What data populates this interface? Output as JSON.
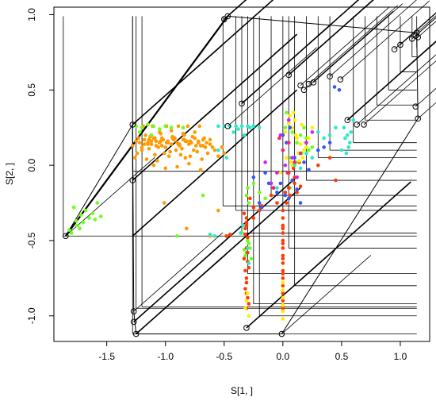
{
  "chart_data": {
    "type": "scatter",
    "xlabel": "S[1, ]",
    "ylabel": "S[2, ]",
    "xlim": [
      -1.95,
      1.25
    ],
    "ylim": [
      -1.17,
      1.05
    ],
    "xticks": [
      -1.5,
      -1.0,
      -0.5,
      0.0,
      0.5,
      1.0
    ],
    "xtick_labels": [
      "-1.5",
      "-1.0",
      "-0.5",
      "0.0",
      "0.5",
      "1.0"
    ],
    "yticks": [
      -1.0,
      -0.5,
      0.0,
      0.5,
      1.0
    ],
    "ytick_labels": [
      "-1.0",
      "-0.5",
      "0.0",
      "0.5",
      "1.0"
    ],
    "grid": false,
    "legend": "none",
    "hull_vertices": [
      [
        -1.85,
        -0.47
      ],
      [
        -1.28,
        0.27
      ],
      [
        -1.28,
        -0.1
      ],
      [
        -1.27,
        -0.97
      ],
      [
        -1.27,
        -1.04
      ],
      [
        -1.25,
        -1.12
      ],
      [
        -0.5,
        0.97
      ],
      [
        -0.47,
        0.99
      ],
      [
        -0.47,
        0.26
      ],
      [
        -0.35,
        0.41
      ],
      [
        -0.31,
        -1.08
      ],
      [
        -0.01,
        -1.12
      ],
      [
        0.05,
        0.6
      ],
      [
        0.15,
        0.53
      ],
      [
        0.18,
        0.5
      ],
      [
        0.22,
        0.54
      ],
      [
        0.26,
        0.55
      ],
      [
        0.4,
        0.59
      ],
      [
        0.49,
        0.57
      ],
      [
        0.55,
        0.3
      ],
      [
        0.63,
        0.27
      ],
      [
        0.69,
        0.27
      ],
      [
        0.95,
        0.77
      ],
      [
        1.0,
        0.8
      ],
      [
        1.1,
        0.84
      ],
      [
        1.13,
        0.86
      ],
      [
        1.14,
        0.88
      ],
      [
        1.15,
        0.85
      ],
      [
        1.13,
        0.39
      ],
      [
        1.15,
        0.31
      ]
    ],
    "rect_corners": [
      [
        -1.87,
        -0.47
      ],
      [
        -1.28,
        -0.04
      ],
      [
        -1.25,
        -0.95
      ],
      [
        -1.28,
        -1.12
      ],
      [
        -1.2,
        -0.94
      ],
      [
        -0.51,
        -0.27
      ],
      [
        -0.4,
        -0.3
      ],
      [
        -0.35,
        -0.45
      ],
      [
        -0.3,
        -0.72
      ],
      [
        -0.25,
        -0.92
      ],
      [
        -0.2,
        -1.0
      ],
      [
        -0.1,
        -0.2
      ],
      [
        0.0,
        -0.3
      ],
      [
        0.05,
        -0.55
      ],
      [
        0.1,
        -0.8
      ],
      [
        0.2,
        -0.1
      ],
      [
        0.3,
        0.05
      ],
      [
        0.4,
        0.1
      ],
      [
        0.6,
        0.15
      ],
      [
        0.7,
        0.3
      ],
      [
        0.8,
        0.4
      ],
      [
        0.9,
        0.5
      ],
      [
        1.0,
        0.62
      ],
      [
        1.1,
        0.72
      ],
      [
        1.14,
        0.78
      ]
    ],
    "series": [
      {
        "color": "#ff9a00",
        "x": [
          -1.25,
          -1.22,
          -1.18,
          -1.15,
          -1.12,
          -1.1,
          -1.08,
          -1.05,
          -1.02,
          -1.0,
          -0.98,
          -0.95,
          -0.92,
          -0.9,
          -0.88,
          -0.85,
          -0.82,
          -0.8,
          -0.78,
          -0.75,
          -0.72,
          -0.7,
          -0.68,
          -0.65,
          -0.62,
          -0.6,
          -1.2,
          -1.14,
          -1.06,
          -0.96,
          -0.86,
          -0.76,
          -0.66,
          -1.17,
          -1.04,
          -0.94,
          -0.84,
          -1.28,
          -1.24,
          -1.09,
          -1.01,
          -0.91,
          -0.87,
          -0.79,
          -0.73,
          -0.64,
          -1.19,
          -1.11,
          -0.99,
          -0.89,
          -0.81,
          -0.71,
          -1.26,
          -1.16,
          -1.07,
          -0.97,
          -0.83,
          -0.69,
          -1.23,
          -1.13,
          -1.03,
          -0.93,
          -0.77,
          -0.67,
          -0.58,
          -0.55,
          -0.52,
          -0.5,
          -1.1,
          -1.0,
          -0.9,
          -0.8,
          -0.7,
          -1.05,
          -0.95,
          -0.85,
          -0.75,
          -1.15,
          -1.12,
          -1.08,
          -1.03,
          -0.98,
          -0.93,
          -0.88,
          -0.83,
          -0.78,
          -0.74,
          -1.2,
          -1.18,
          -1.14,
          -1.09,
          -1.04,
          -0.99,
          -0.94,
          -0.89,
          -0.84,
          -0.79,
          -0.72,
          -0.68,
          -0.62,
          -1.01,
          -0.82,
          -0.62,
          -0.55
        ],
        "y": [
          0.16,
          0.15,
          0.17,
          0.14,
          0.16,
          0.18,
          0.13,
          0.15,
          0.17,
          0.12,
          0.16,
          0.14,
          0.18,
          0.15,
          0.13,
          0.17,
          0.16,
          0.14,
          0.15,
          0.18,
          0.16,
          0.13,
          0.17,
          0.15,
          0.14,
          0.12,
          0.1,
          0.11,
          0.12,
          0.09,
          0.11,
          0.1,
          0.12,
          0.2,
          0.21,
          0.19,
          0.2,
          0.13,
          0.08,
          0.07,
          0.08,
          0.1,
          0.07,
          0.06,
          0.09,
          0.08,
          0.26,
          0.26,
          0.26,
          0.26,
          0.26,
          0.26,
          0.05,
          0.04,
          0.03,
          0.06,
          0.05,
          0.04,
          0.18,
          0.19,
          0.18,
          0.17,
          0.19,
          0.18,
          0.1,
          0.06,
          0.12,
          0.08,
          0.0,
          -0.02,
          -0.01,
          0.01,
          -0.03,
          0.22,
          0.23,
          0.21,
          0.22,
          0.15,
          0.14,
          0.16,
          0.13,
          0.15,
          0.17,
          0.14,
          0.16,
          0.15,
          0.13,
          0.12,
          0.14,
          0.17,
          0.18,
          0.16,
          0.15,
          0.18,
          0.14,
          0.17,
          0.16,
          0.15,
          0.13,
          0.17,
          -0.25,
          -0.42,
          -0.47,
          -0.3
        ]
      },
      {
        "color": "#6cff1a",
        "x": [
          -1.78,
          -1.72,
          -1.7,
          -1.65,
          -1.62,
          -1.58,
          -1.55,
          -1.75,
          -1.68,
          -1.8,
          -1.73,
          -1.6,
          -1.82,
          -1.76,
          -1.25,
          -1.2,
          -1.15,
          -1.1,
          -1.05,
          -1.0,
          -0.95,
          -1.22,
          -1.12,
          -0.85,
          -0.68,
          -0.9,
          -0.62,
          -0.35,
          -0.3,
          -0.28,
          -0.32,
          -0.31,
          -0.29,
          -0.33,
          -0.27,
          -0.3,
          -0.31,
          -0.29,
          -0.25,
          -0.2,
          -0.15,
          0.02,
          0.05,
          0.08,
          0.1,
          0.12,
          0.15,
          0.18,
          0.2,
          0.22,
          0.25,
          0.03,
          0.07,
          0.11,
          0.16,
          0.06
        ],
        "y": [
          -0.28,
          -0.33,
          -0.38,
          -0.35,
          -0.32,
          -0.25,
          -0.34,
          -0.4,
          -0.3,
          -0.45,
          -0.42,
          -0.36,
          -0.43,
          -0.37,
          0.26,
          0.25,
          0.27,
          0.26,
          0.24,
          0.26,
          0.25,
          0.22,
          0.2,
          0.25,
          -0.2,
          -0.47,
          -0.46,
          -0.45,
          -0.5,
          -0.55,
          -0.6,
          -0.58,
          -0.52,
          -0.56,
          -0.62,
          -0.15,
          -0.2,
          -0.25,
          -0.12,
          -0.18,
          -0.22,
          0.25,
          0.28,
          0.22,
          0.3,
          0.15,
          0.2,
          0.25,
          0.18,
          0.1,
          0.12,
          0.35,
          0.05,
          0.02,
          0.08,
          -0.15
        ]
      },
      {
        "color": "#ff3c00",
        "x": [
          -0.31,
          -0.32,
          -0.3,
          -0.31,
          -0.33,
          -0.29,
          -0.31,
          -0.32,
          -0.3,
          -0.31,
          -0.33,
          -0.31,
          -0.3,
          -0.32,
          -0.31,
          -0.29,
          -0.31,
          -0.32,
          -0.3,
          -0.31,
          0.0,
          0.0,
          0.0,
          0.0,
          0.0,
          0.0,
          0.0,
          0.0,
          0.0,
          0.0,
          0.0,
          0.0,
          0.0,
          0.0,
          0.0,
          0.0,
          0.0,
          0.0,
          0.02,
          0.05,
          0.08,
          0.1,
          0.06,
          0.03,
          0.1,
          0.15,
          -0.1,
          -0.05,
          -0.2,
          -0.28,
          -0.25,
          0.12,
          -0.45,
          -0.48,
          -0.25,
          -0.18,
          0.05,
          0.09,
          0.14,
          0.3,
          0.4,
          0.45
        ],
        "y": [
          -0.35,
          -0.42,
          -0.48,
          -0.55,
          -0.62,
          -0.68,
          -0.75,
          -0.82,
          -0.88,
          -0.95,
          -0.32,
          -0.4,
          -0.58,
          -0.7,
          -0.85,
          -0.92,
          -0.38,
          -0.46,
          -0.64,
          -0.78,
          -0.4,
          -0.45,
          -0.5,
          -0.55,
          -0.6,
          -0.65,
          -0.7,
          -0.75,
          -0.8,
          -0.85,
          -0.9,
          -0.95,
          -0.3,
          -0.35,
          -0.42,
          -0.52,
          -0.62,
          -0.72,
          -0.18,
          -0.15,
          -0.1,
          -0.12,
          -0.2,
          -0.25,
          -0.08,
          -0.14,
          -0.2,
          -0.25,
          -0.3,
          -0.22,
          -0.28,
          -0.18,
          -0.46,
          -0.47,
          -0.35,
          -0.27,
          -0.05,
          -0.02,
          0.02,
          0.0,
          0.05,
          -0.1
        ]
      },
      {
        "color": "#ffee00",
        "x": [
          0.02,
          0.05,
          0.08,
          0.1,
          0.12,
          0.15,
          0.18,
          0.2,
          0.06,
          0.09,
          0.13,
          0.17,
          0.04,
          0.11,
          0.16,
          0.22,
          0.25,
          0.07,
          0.14,
          0.19,
          0.0,
          0.0,
          0.0,
          0.0,
          0.0,
          0.0,
          -0.3,
          -0.31,
          -0.32,
          -0.29,
          0.03,
          0.08,
          -0.02
        ],
        "y": [
          0.22,
          0.28,
          0.25,
          0.3,
          0.18,
          0.14,
          0.1,
          0.12,
          0.33,
          0.35,
          0.08,
          0.05,
          0.15,
          0.2,
          0.27,
          0.18,
          0.25,
          0.02,
          0.03,
          0.15,
          -0.78,
          -0.83,
          -0.88,
          -0.93,
          -0.97,
          -1.02,
          -0.85,
          -0.9,
          -0.95,
          -1.0,
          0.05,
          0.0,
          -0.05
        ]
      },
      {
        "color": "#2de8c8",
        "x": [
          -0.55,
          -0.5,
          -0.45,
          -0.4,
          -0.35,
          -0.3,
          -0.42,
          -0.38,
          -0.33,
          -0.28,
          -0.25,
          -0.2,
          0.52,
          0.55,
          0.57,
          0.5,
          0.53,
          0.56,
          0.58,
          0.54,
          -0.58,
          -0.62,
          -0.34,
          -0.36,
          -0.3,
          -0.29,
          0.4,
          0.45,
          0.6,
          0.3,
          0.35,
          0.2,
          0.25,
          0.1,
          0.15,
          -0.1,
          -0.05,
          -0.55,
          -0.48
        ],
        "y": [
          0.26,
          0.26,
          0.26,
          0.26,
          0.26,
          0.26,
          0.22,
          0.24,
          0.2,
          0.25,
          0.26,
          0.25,
          0.25,
          0.2,
          0.15,
          0.1,
          0.18,
          0.12,
          0.22,
          0.08,
          -0.47,
          -0.46,
          -0.4,
          -0.45,
          -0.55,
          -0.65,
          0.2,
          0.25,
          0.3,
          0.22,
          0.18,
          0.08,
          0.05,
          0.0,
          -0.02,
          -0.12,
          -0.15,
          0.1,
          0.05
        ]
      },
      {
        "color": "#3355ff",
        "x": [
          -0.08,
          -0.05,
          -0.02,
          0.02,
          0.05,
          0.08,
          0.12,
          0.15,
          -0.15,
          -0.12,
          0.1,
          0.18,
          0.22,
          0.3,
          0.35,
          0.4,
          0.44,
          0.48,
          -0.2,
          -0.18,
          -0.25,
          0.0,
          0.03,
          0.06
        ],
        "y": [
          -0.15,
          -0.18,
          -0.12,
          -0.2,
          -0.22,
          -0.1,
          -0.16,
          -0.25,
          -0.05,
          -0.12,
          0.05,
          0.02,
          -0.03,
          0.1,
          0.12,
          0.15,
          0.52,
          0.5,
          -0.25,
          -0.28,
          -0.08,
          0.2,
          0.15,
          0.25
        ]
      },
      {
        "color": "#cc22ff",
        "x": [
          -0.05,
          0.02,
          0.08,
          0.12,
          -0.15,
          -0.1,
          0.2,
          0.25,
          0.05,
          -0.02
        ],
        "y": [
          -0.05,
          0.0,
          0.05,
          -0.08,
          0.02,
          -0.12,
          0.15,
          0.22,
          0.3,
          0.2
        ]
      },
      {
        "color": "#ff2266",
        "x": [
          0.04,
          0.1,
          -0.08,
          0.15,
          0.0,
          0.05,
          -0.03
        ],
        "y": [
          -0.05,
          0.02,
          -0.15,
          0.08,
          0.1,
          0.15,
          0.18
        ]
      }
    ]
  }
}
